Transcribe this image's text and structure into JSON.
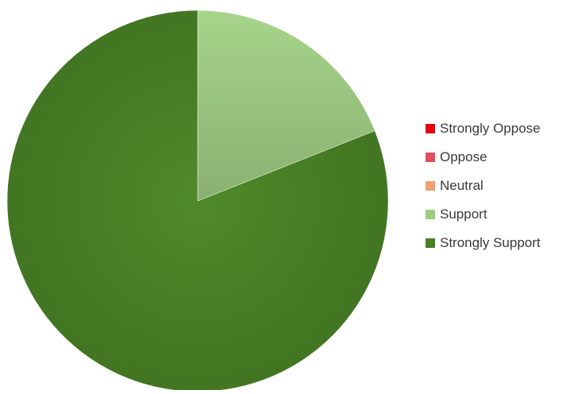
{
  "chart_data": {
    "type": "pie",
    "title": "",
    "start_angle": "12 o'clock, clockwise",
    "slices": [
      {
        "label": "Strongly Oppose",
        "value": 0,
        "color": "#e8000b"
      },
      {
        "label": "Oppose",
        "value": 0,
        "color": "#e0505c"
      },
      {
        "label": "Neutral",
        "value": 0,
        "color": "#f0a070"
      },
      {
        "label": "Support",
        "value": 19,
        "color": "#9ccc80"
      },
      {
        "label": "Strongly Support",
        "value": 81,
        "color": "#4a7f25"
      }
    ],
    "legend": {
      "placement": "right"
    }
  }
}
